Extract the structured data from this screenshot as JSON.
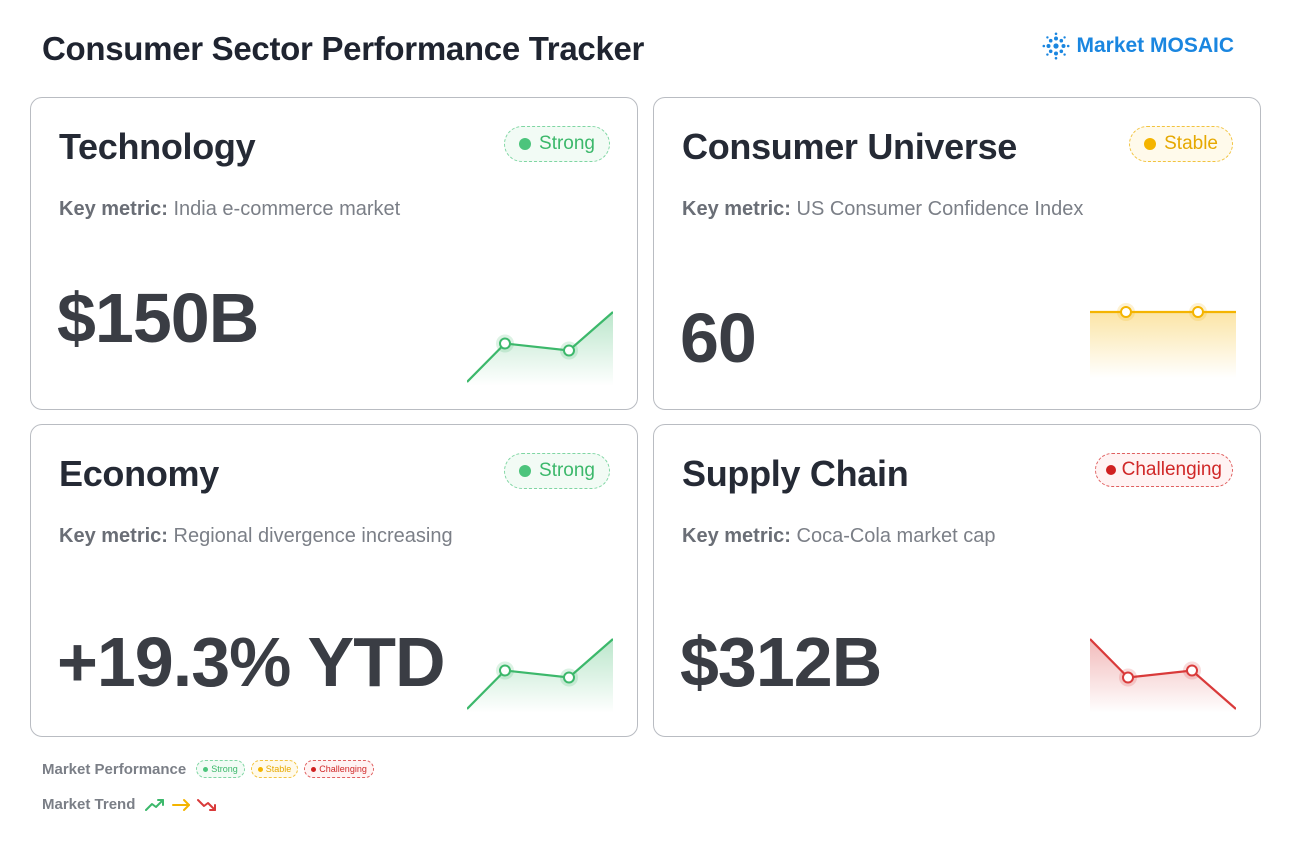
{
  "header": {
    "title": "Consumer Sector Performance Tracker",
    "brand": "Market MOSAIC",
    "brand_icon": "mosaic-logo-icon",
    "brand_color": "#1a86e0"
  },
  "cards": [
    {
      "title": "Technology",
      "status": "Strong",
      "key_metric_label": "Key metric:",
      "key_metric": "India e-commerce market",
      "value": "$150B",
      "trend": "up",
      "trend_points": [
        0,
        0.55,
        0.45,
        1
      ]
    },
    {
      "title": "Consumer Universe",
      "status": "Stable",
      "key_metric_label": "Key metric:",
      "key_metric": "US Consumer Confidence Index",
      "value": "60",
      "trend": "flat",
      "trend_points": [
        0.5,
        0.5,
        0.5,
        0.5
      ]
    },
    {
      "title": "Economy",
      "status": "Strong",
      "key_metric_label": "Key metric:",
      "key_metric": "Regional divergence increasing",
      "value": "+19.3% YTD",
      "trend": "up",
      "trend_points": [
        0,
        0.55,
        0.45,
        1
      ]
    },
    {
      "title": "Supply Chain",
      "status": "Challenging",
      "key_metric_label": "Key metric:",
      "key_metric": "Coca-Cola market cap",
      "value": "$312B",
      "trend": "down",
      "trend_points": [
        1,
        0.45,
        0.55,
        0
      ]
    }
  ],
  "legend": {
    "performance_label": "Market Performance",
    "performance_items": [
      "Strong",
      "Stable",
      "Challenging"
    ],
    "trend_label": "Market Trend",
    "trend_icons": [
      "trend-up-icon",
      "trend-flat-icon",
      "trend-down-icon"
    ]
  },
  "colors": {
    "strong": "#3cb86b",
    "stable": "#f4b400",
    "challenging": "#d93a3a"
  }
}
